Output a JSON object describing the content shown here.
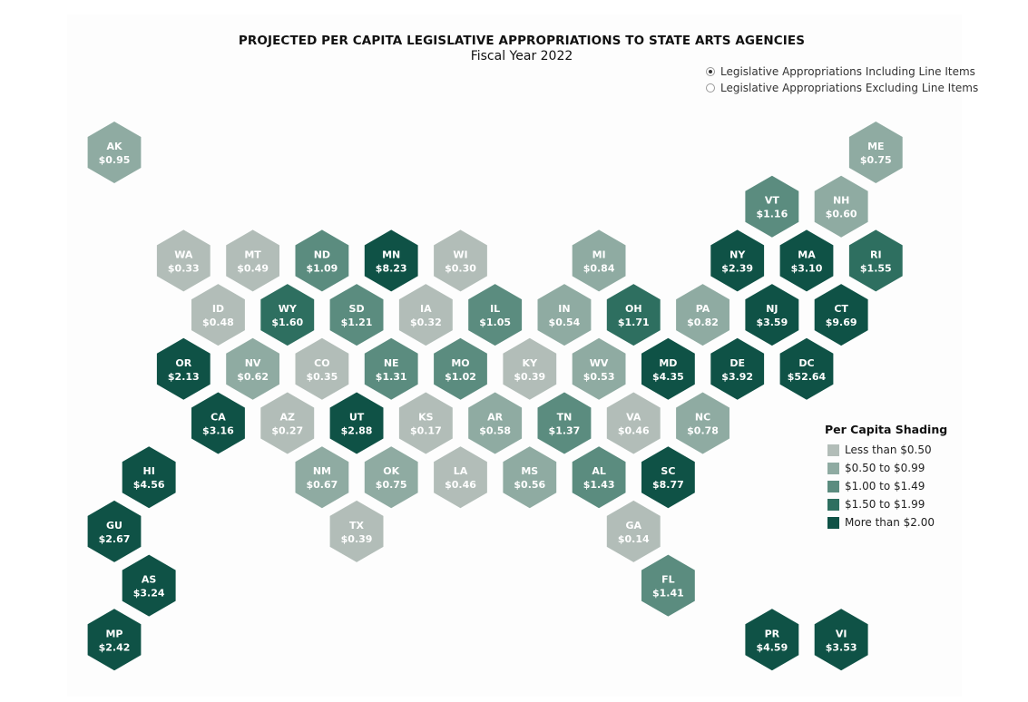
{
  "title": "PROJECTED PER CAPITA LEGISLATIVE APPROPRIATIONS TO STATE ARTS AGENCIES",
  "subtitle": "Fiscal Year 2022",
  "options": [
    {
      "label": "Legislative Appropriations Including Line Items",
      "selected": true
    },
    {
      "label": "Legislative Appropriations Excluding Line Items",
      "selected": false
    }
  ],
  "legend": {
    "title": "Per Capita Shading",
    "items": [
      {
        "label": "Less than $0.50",
        "color": "#b2bdb8"
      },
      {
        "label": "$0.50 to $0.99",
        "color": "#8faba2"
      },
      {
        "label": "$1.00 to $1.49",
        "color": "#5b8c7f"
      },
      {
        "label": "$1.50 to $1.99",
        "color": "#2e6f60"
      },
      {
        "label": "More than $2.00",
        "color": "#0f5246"
      }
    ]
  },
  "regions": [
    {
      "abbr": "AK",
      "value": "$0.95",
      "row": 0,
      "col": 0
    },
    {
      "abbr": "ME",
      "value": "$0.75",
      "row": 0,
      "col": 11
    },
    {
      "abbr": "VT",
      "value": "$1.16",
      "row": 1,
      "col": 9.5
    },
    {
      "abbr": "NH",
      "value": "$0.60",
      "row": 1,
      "col": 10.5
    },
    {
      "abbr": "WA",
      "value": "$0.33",
      "row": 2,
      "col": 1
    },
    {
      "abbr": "MT",
      "value": "$0.49",
      "row": 2,
      "col": 2
    },
    {
      "abbr": "ND",
      "value": "$1.09",
      "row": 2,
      "col": 3
    },
    {
      "abbr": "MN",
      "value": "$8.23",
      "row": 2,
      "col": 4
    },
    {
      "abbr": "WI",
      "value": "$0.30",
      "row": 2,
      "col": 5
    },
    {
      "abbr": "MI",
      "value": "$0.84",
      "row": 2,
      "col": 7
    },
    {
      "abbr": "NY",
      "value": "$2.39",
      "row": 2,
      "col": 9
    },
    {
      "abbr": "MA",
      "value": "$3.10",
      "row": 2,
      "col": 10
    },
    {
      "abbr": "RI",
      "value": "$1.55",
      "row": 2,
      "col": 11
    },
    {
      "abbr": "ID",
      "value": "$0.48",
      "row": 3,
      "col": 1.5
    },
    {
      "abbr": "WY",
      "value": "$1.60",
      "row": 3,
      "col": 2.5
    },
    {
      "abbr": "SD",
      "value": "$1.21",
      "row": 3,
      "col": 3.5
    },
    {
      "abbr": "IA",
      "value": "$0.32",
      "row": 3,
      "col": 4.5
    },
    {
      "abbr": "IL",
      "value": "$1.05",
      "row": 3,
      "col": 5.5
    },
    {
      "abbr": "IN",
      "value": "$0.54",
      "row": 3,
      "col": 6.5
    },
    {
      "abbr": "OH",
      "value": "$1.71",
      "row": 3,
      "col": 7.5
    },
    {
      "abbr": "PA",
      "value": "$0.82",
      "row": 3,
      "col": 8.5
    },
    {
      "abbr": "NJ",
      "value": "$3.59",
      "row": 3,
      "col": 9.5
    },
    {
      "abbr": "CT",
      "value": "$9.69",
      "row": 3,
      "col": 10.5
    },
    {
      "abbr": "OR",
      "value": "$2.13",
      "row": 4,
      "col": 1
    },
    {
      "abbr": "NV",
      "value": "$0.62",
      "row": 4,
      "col": 2
    },
    {
      "abbr": "CO",
      "value": "$0.35",
      "row": 4,
      "col": 3
    },
    {
      "abbr": "NE",
      "value": "$1.31",
      "row": 4,
      "col": 4
    },
    {
      "abbr": "MO",
      "value": "$1.02",
      "row": 4,
      "col": 5
    },
    {
      "abbr": "KY",
      "value": "$0.39",
      "row": 4,
      "col": 6
    },
    {
      "abbr": "WV",
      "value": "$0.53",
      "row": 4,
      "col": 7
    },
    {
      "abbr": "MD",
      "value": "$4.35",
      "row": 4,
      "col": 8
    },
    {
      "abbr": "DE",
      "value": "$3.92",
      "row": 4,
      "col": 9
    },
    {
      "abbr": "DC",
      "value": "$52.64",
      "row": 4,
      "col": 10
    },
    {
      "abbr": "CA",
      "value": "$3.16",
      "row": 5,
      "col": 1.5
    },
    {
      "abbr": "AZ",
      "value": "$0.27",
      "row": 5,
      "col": 2.5
    },
    {
      "abbr": "UT",
      "value": "$2.88",
      "row": 5,
      "col": 3.5
    },
    {
      "abbr": "KS",
      "value": "$0.17",
      "row": 5,
      "col": 4.5
    },
    {
      "abbr": "AR",
      "value": "$0.58",
      "row": 5,
      "col": 5.5
    },
    {
      "abbr": "TN",
      "value": "$1.37",
      "row": 5,
      "col": 6.5
    },
    {
      "abbr": "VA",
      "value": "$0.46",
      "row": 5,
      "col": 7.5
    },
    {
      "abbr": "NC",
      "value": "$0.78",
      "row": 5,
      "col": 8.5
    },
    {
      "abbr": "HI",
      "value": "$4.56",
      "row": 6,
      "col": 0.5
    },
    {
      "abbr": "NM",
      "value": "$0.67",
      "row": 6,
      "col": 3
    },
    {
      "abbr": "OK",
      "value": "$0.75",
      "row": 6,
      "col": 4
    },
    {
      "abbr": "LA",
      "value": "$0.46",
      "row": 6,
      "col": 5
    },
    {
      "abbr": "MS",
      "value": "$0.56",
      "row": 6,
      "col": 6
    },
    {
      "abbr": "AL",
      "value": "$1.43",
      "row": 6,
      "col": 7
    },
    {
      "abbr": "SC",
      "value": "$8.77",
      "row": 6,
      "col": 8
    },
    {
      "abbr": "GU",
      "value": "$2.67",
      "row": 7,
      "col": 0
    },
    {
      "abbr": "TX",
      "value": "$0.39",
      "row": 7,
      "col": 3.5
    },
    {
      "abbr": "GA",
      "value": "$0.14",
      "row": 7,
      "col": 7.5
    },
    {
      "abbr": "AS",
      "value": "$3.24",
      "row": 8,
      "col": 0.5
    },
    {
      "abbr": "FL",
      "value": "$1.41",
      "row": 8,
      "col": 8
    },
    {
      "abbr": "MP",
      "value": "$2.42",
      "row": 9,
      "col": 0
    },
    {
      "abbr": "PR",
      "value": "$4.59",
      "row": 9,
      "col": 9.5
    },
    {
      "abbr": "VI",
      "value": "$3.53",
      "row": 9,
      "col": 10.5
    }
  ]
}
